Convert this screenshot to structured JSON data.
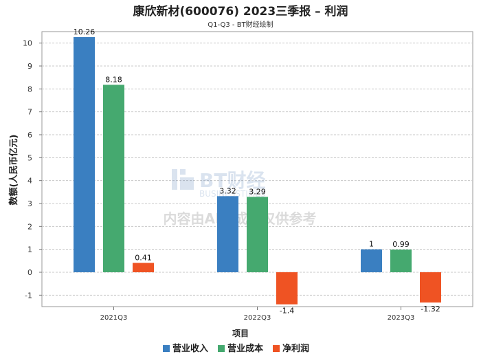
{
  "chart_data": {
    "type": "bar",
    "title": "康欣新材(600076) 2023三季报 – 利润",
    "subtitle": "Q1-Q3 - BT财经绘制",
    "xlabel": "项目",
    "ylabel": "数额(人民币亿元)",
    "categories": [
      "2021Q3",
      "2022Q3",
      "2023Q3"
    ],
    "ylim": [
      -1.5,
      10.5
    ],
    "yticks": [
      -1,
      0,
      1,
      2,
      3,
      4,
      5,
      6,
      7,
      8,
      9,
      10
    ],
    "grid": true,
    "legend_position": "bottom",
    "series": [
      {
        "name": "营业收入",
        "color": "#3a7fc1",
        "values": [
          10.26,
          3.32,
          1
        ],
        "labels": [
          "10.26",
          "3.32",
          "1"
        ]
      },
      {
        "name": "营业成本",
        "color": "#45a96f",
        "values": [
          8.18,
          3.29,
          0.99
        ],
        "labels": [
          "8.18",
          "3.29",
          "0.99"
        ]
      },
      {
        "name": "净利润",
        "color": "#ef5323",
        "values": [
          0.41,
          -1.4,
          -1.32
        ],
        "labels": [
          "0.41",
          "-1.4",
          "-1.32"
        ]
      }
    ]
  },
  "watermark": {
    "brand": "BT财经",
    "brand_en": "BUSINESSTIMES",
    "notice": "内容由AI生成，仅供参考"
  }
}
